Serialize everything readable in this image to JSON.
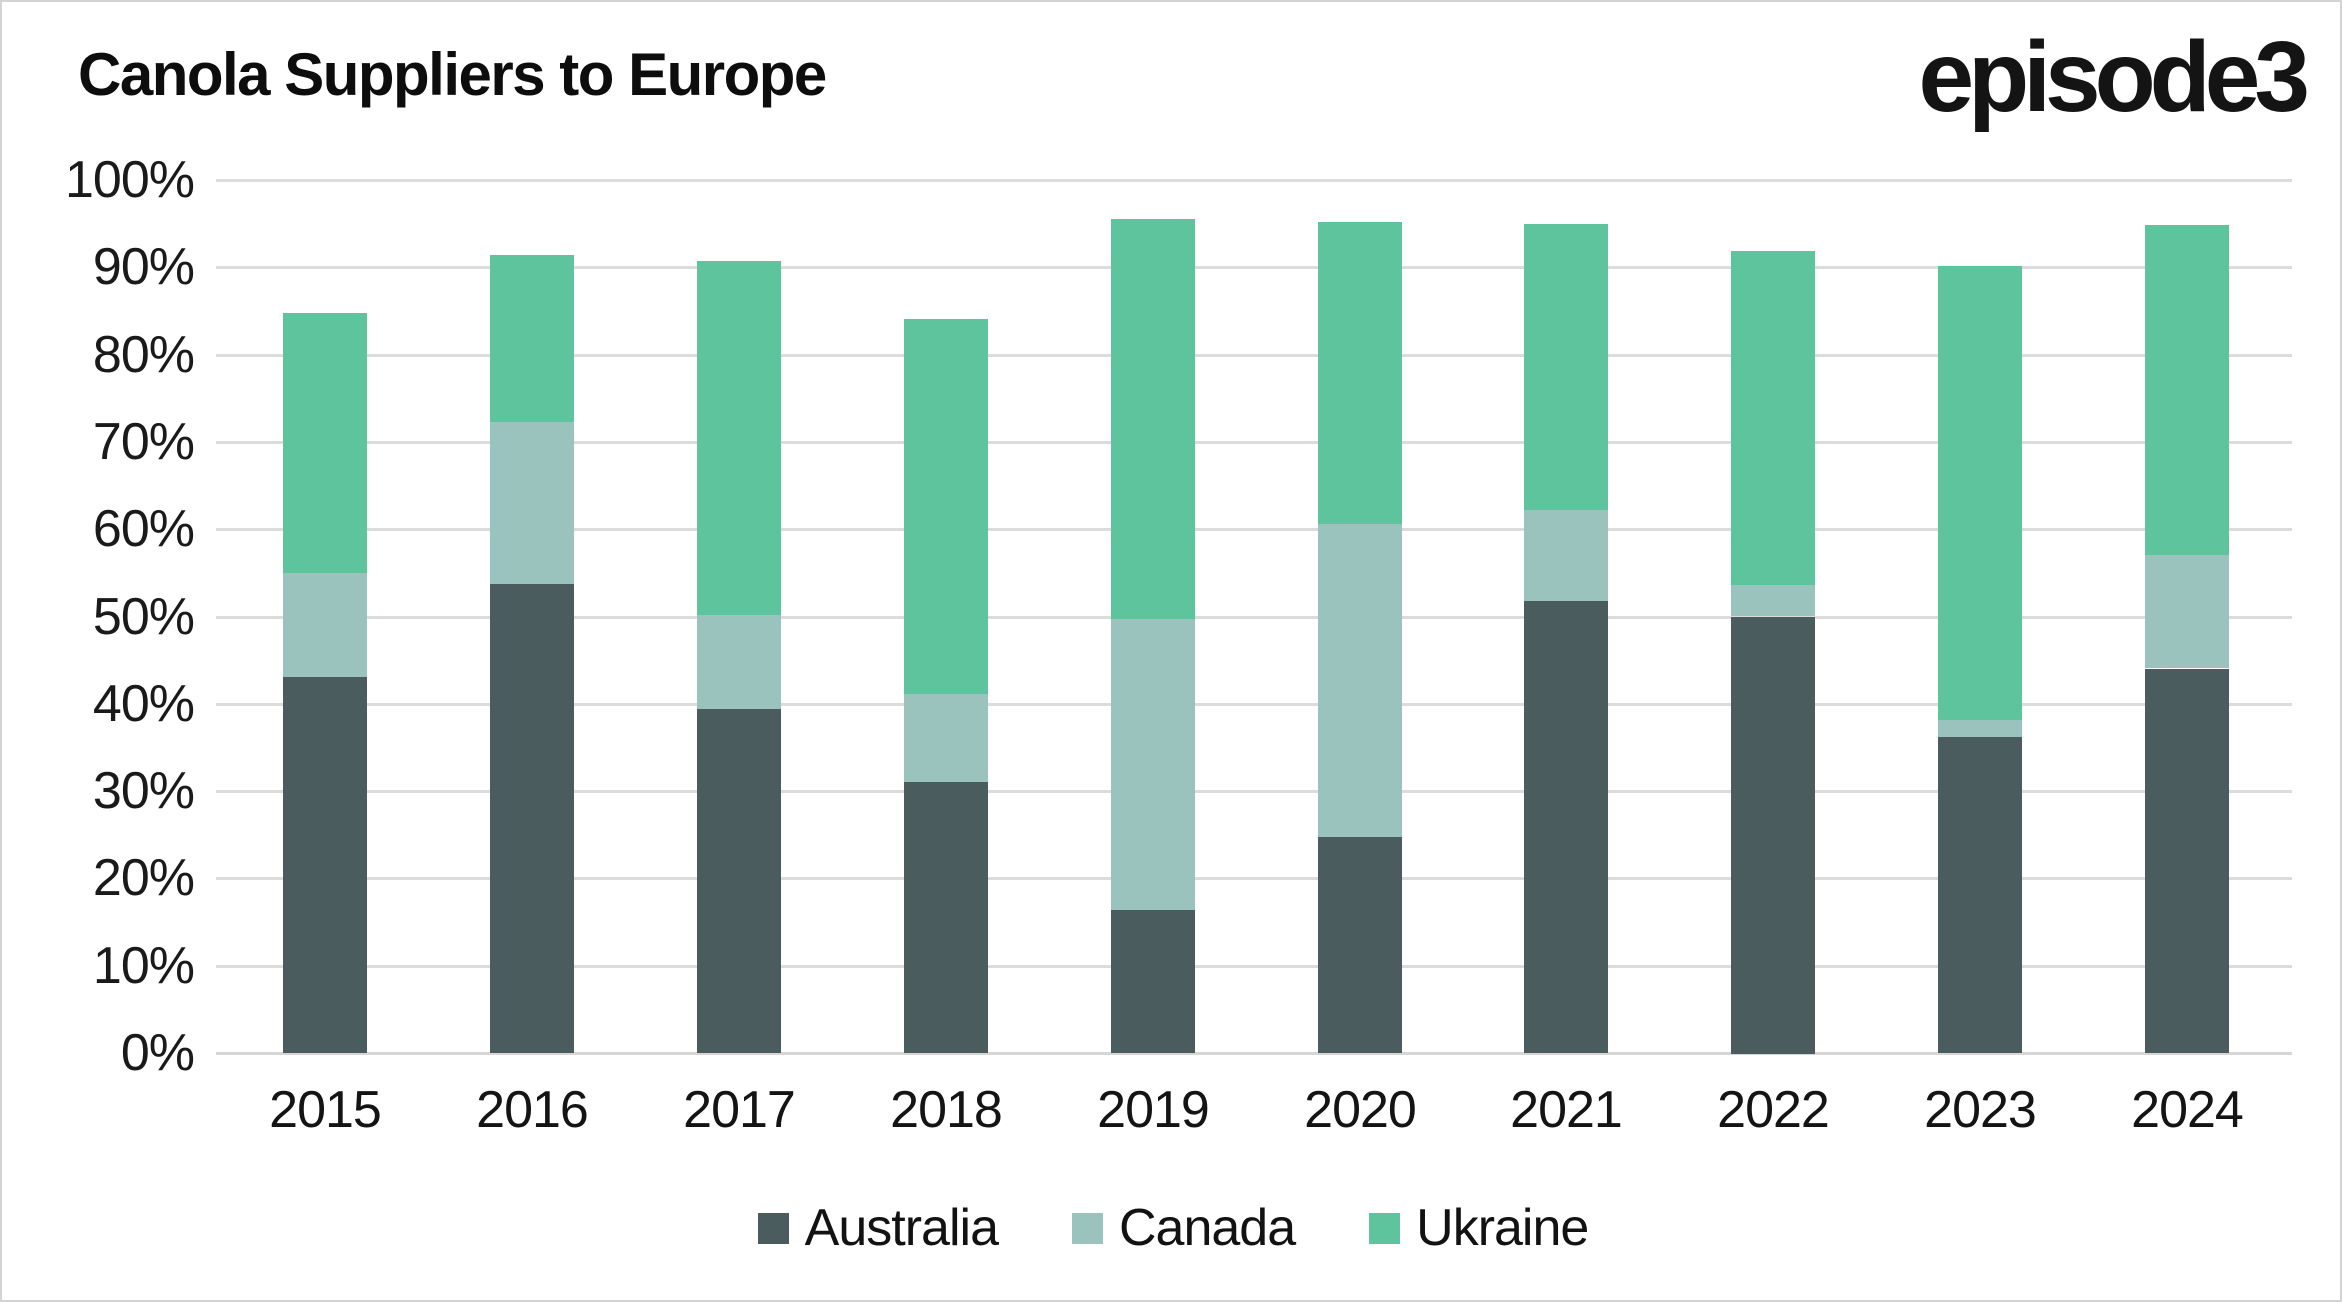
{
  "header": {
    "title": "Canola Suppliers to Europe",
    "logo_text": "episode3"
  },
  "chart_data": {
    "type": "bar",
    "stacked": true,
    "title": "Canola Suppliers to Europe",
    "categories": [
      "2015",
      "2016",
      "2017",
      "2018",
      "2019",
      "2020",
      "2021",
      "2022",
      "2023",
      "2024"
    ],
    "series": [
      {
        "name": "Australia",
        "color": "#4b5c5e",
        "values": [
          43.1,
          53.7,
          39.4,
          31.0,
          16.4,
          24.7,
          51.8,
          50.0,
          36.2,
          44.0
        ]
      },
      {
        "name": "Canada",
        "color": "#9ac3bd",
        "values": [
          11.9,
          18.6,
          10.8,
          10.1,
          33.3,
          35.9,
          10.4,
          3.6,
          2.0,
          13.0
        ]
      },
      {
        "name": "Ukraine",
        "color": "#5ec49d",
        "values": [
          29.8,
          19.1,
          40.5,
          43.0,
          45.8,
          34.6,
          32.8,
          38.3,
          52.0,
          37.8
        ]
      }
    ],
    "stack_totals": [
      84.8,
      91.4,
      90.7,
      84.1,
      95.5,
      95.2,
      95.0,
      91.9,
      90.2,
      94.8
    ],
    "xlabel": "",
    "ylabel": "",
    "yticks": [
      "0%",
      "10%",
      "20%",
      "30%",
      "40%",
      "50%",
      "60%",
      "70%",
      "80%",
      "90%",
      "100%"
    ],
    "ylim": [
      0,
      100
    ],
    "grid": true,
    "gridline_color": "#dcdcdc",
    "legend_position": "bottom",
    "legend_labels": [
      "Australia",
      "Canada",
      "Ukraine"
    ]
  }
}
